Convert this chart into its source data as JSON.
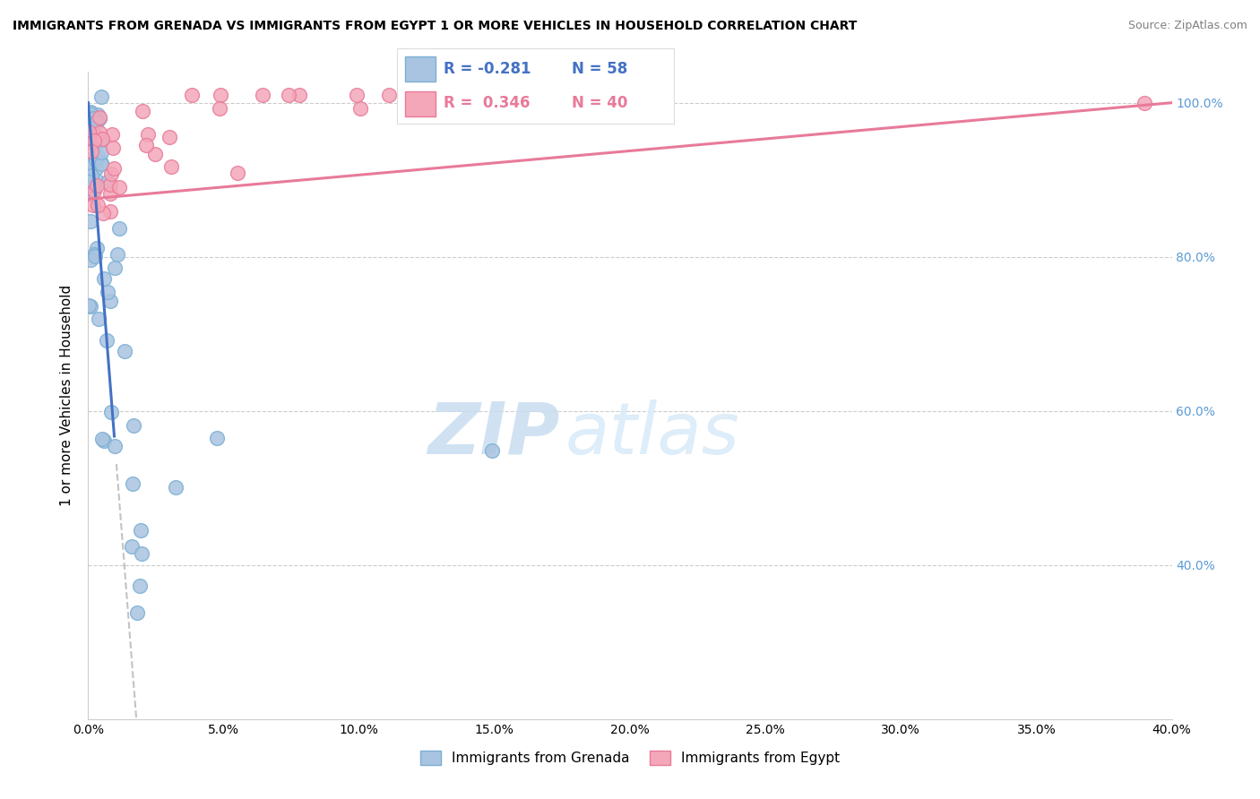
{
  "title": "IMMIGRANTS FROM GRENADA VS IMMIGRANTS FROM EGYPT 1 OR MORE VEHICLES IN HOUSEHOLD CORRELATION CHART",
  "source": "Source: ZipAtlas.com",
  "ylabel": "1 or more Vehicles in Household",
  "xlim": [
    0.0,
    0.4
  ],
  "ylim": [
    0.2,
    1.04
  ],
  "xticks": [
    0.0,
    0.05,
    0.1,
    0.15,
    0.2,
    0.25,
    0.3,
    0.35,
    0.4
  ],
  "yticks": [
    0.4,
    0.6,
    0.8,
    1.0
  ],
  "ytick_labels": [
    "40.0%",
    "60.0%",
    "80.0%",
    "100.0%"
  ],
  "xtick_labels": [
    "0.0%",
    "5.0%",
    "10.0%",
    "15.0%",
    "20.0%",
    "25.0%",
    "30.0%",
    "35.0%",
    "40.0%"
  ],
  "watermark_zip": "ZIP",
  "watermark_atlas": "atlas",
  "legend_R_grenada": "-0.281",
  "legend_N_grenada": "58",
  "legend_R_egypt": "0.346",
  "legend_N_egypt": "40",
  "grenada_color": "#a8c4e0",
  "egypt_color": "#f4a7b9",
  "grenada_edge": "#7bafd4",
  "egypt_edge": "#e87a9a",
  "trendline_grenada_color": "#4472c4",
  "trendline_egypt_color": "#e87a9a",
  "right_axis_color": "#5b9bd5"
}
